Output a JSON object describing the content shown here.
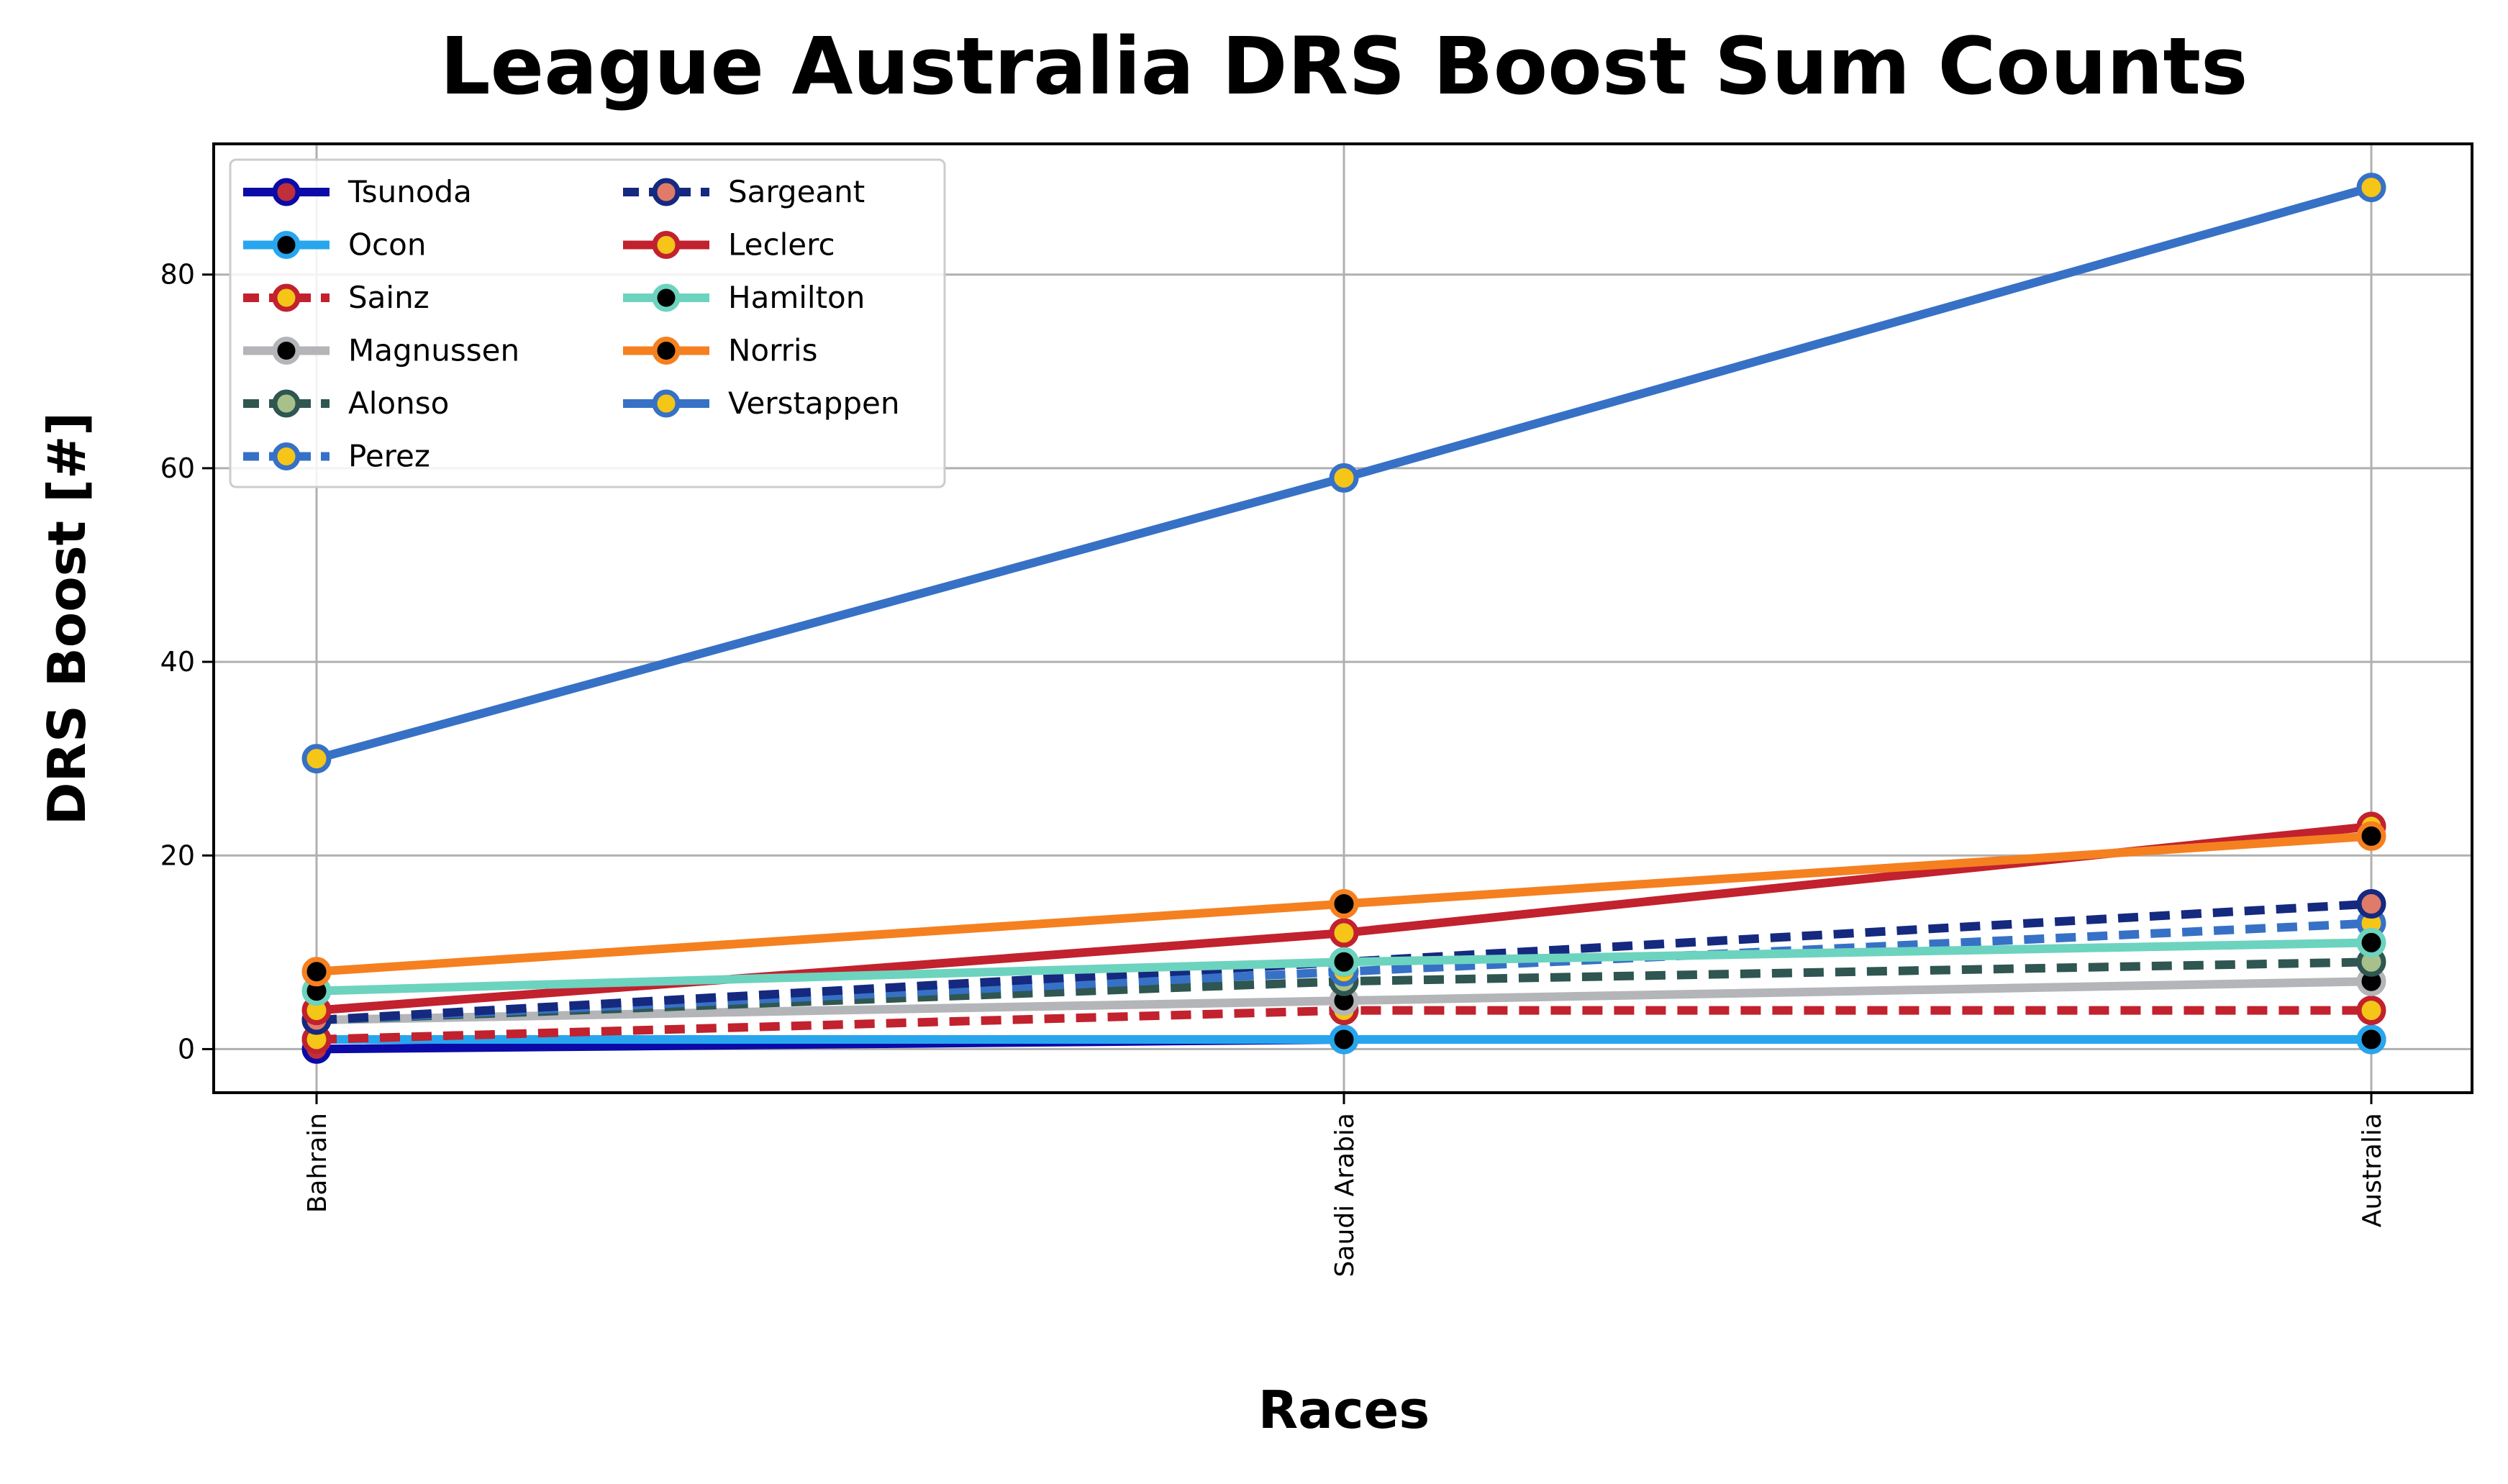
{
  "chart_data": {
    "type": "line",
    "title": "League Australia DRS Boost Sum Counts",
    "xlabel": "Races",
    "ylabel": "DRS Boost [#]",
    "categories": [
      "Bahrain",
      "Saudi Arabia",
      "Australia"
    ],
    "ylim": [
      -4.5,
      93.5
    ],
    "yticks": [
      0,
      20,
      40,
      60,
      80
    ],
    "grid": true,
    "legend_position": "top-left",
    "legend_columns": 2,
    "series": [
      {
        "name": "Tsunoda",
        "values": [
          0,
          1,
          1
        ],
        "color": "#0a0aa8",
        "marker_fill": "#c0303a",
        "dash": "solid"
      },
      {
        "name": "Ocon",
        "values": [
          1,
          1,
          1
        ],
        "color": "#27a6ee",
        "marker_fill": "#000000",
        "dash": "solid"
      },
      {
        "name": "Sainz",
        "values": [
          1,
          4,
          4
        ],
        "color": "#c2212e",
        "marker_fill": "#f5c518",
        "dash": "dashed"
      },
      {
        "name": "Magnussen",
        "values": [
          3,
          5,
          7
        ],
        "color": "#b3b5b8",
        "marker_fill": "#000000",
        "dash": "solid"
      },
      {
        "name": "Alonso",
        "values": [
          3,
          7,
          9
        ],
        "color": "#2f5650",
        "marker_fill": "#a8c08a",
        "dash": "dashed"
      },
      {
        "name": "Perez",
        "values": [
          3,
          8,
          13
        ],
        "color": "#3671c6",
        "marker_fill": "#f5c518",
        "dash": "dashed"
      },
      {
        "name": "Sargeant",
        "values": [
          3,
          9,
          15
        ],
        "color": "#15297f",
        "marker_fill": "#e07b6a",
        "dash": "dashed"
      },
      {
        "name": "Leclerc",
        "values": [
          4,
          12,
          23
        ],
        "color": "#c2212e",
        "marker_fill": "#f5c518",
        "dash": "solid"
      },
      {
        "name": "Hamilton",
        "values": [
          6,
          9,
          11
        ],
        "color": "#6cd3bf",
        "marker_fill": "#000000",
        "dash": "solid"
      },
      {
        "name": "Norris",
        "values": [
          8,
          15,
          22
        ],
        "color": "#f58020",
        "marker_fill": "#000000",
        "dash": "solid"
      },
      {
        "name": "Verstappen",
        "values": [
          30,
          59,
          89
        ],
        "color": "#3671c6",
        "marker_fill": "#f5c518",
        "dash": "solid"
      }
    ]
  }
}
